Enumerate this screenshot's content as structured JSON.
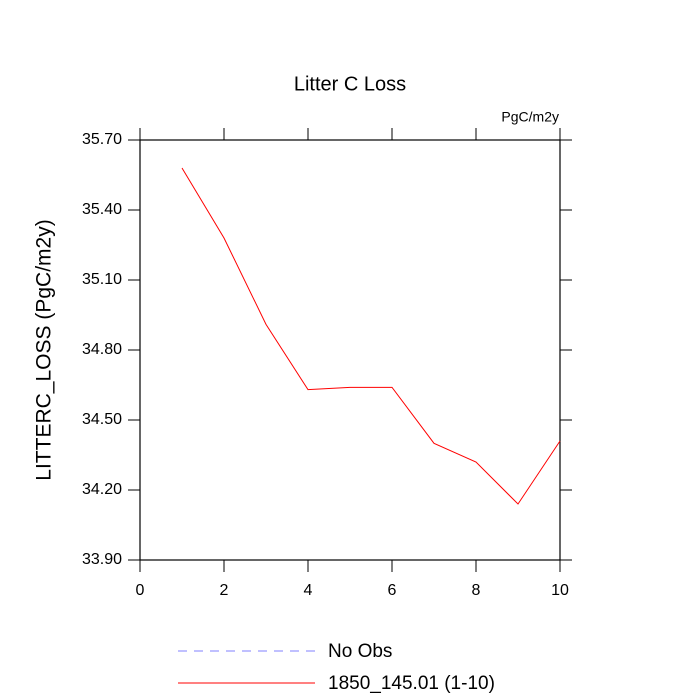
{
  "chart_data": {
    "type": "line",
    "title": "Litter C Loss",
    "units_label": "PgC/m2y",
    "y_label": "LITTERC_LOSS  (PgC/m2y)",
    "x": [
      1,
      2,
      3,
      4,
      5,
      6,
      7,
      8,
      9,
      10
    ],
    "series": [
      {
        "name": "No Obs",
        "color": "#8080ff",
        "style": "dashed",
        "values": [
          null,
          null,
          null,
          null,
          null,
          null,
          null,
          null,
          null,
          null
        ]
      },
      {
        "name": "1850_145.01 (1-10)",
        "color": "#ff0000",
        "style": "solid",
        "values": [
          35.58,
          35.28,
          34.91,
          34.63,
          34.64,
          34.64,
          34.4,
          34.32,
          34.14,
          34.41
        ]
      }
    ],
    "xlim": [
      0,
      10
    ],
    "xticks": [
      0,
      2,
      4,
      6,
      8,
      10
    ],
    "ylim": [
      33.9,
      35.7
    ],
    "yticks": [
      {
        "value": 33.9,
        "label": "33.90"
      },
      {
        "value": 34.2,
        "label": "34.20"
      },
      {
        "value": 34.5,
        "label": "34.50"
      },
      {
        "value": 34.8,
        "label": "34.80"
      },
      {
        "value": 35.1,
        "label": "35.10"
      },
      {
        "value": 35.4,
        "label": "35.40"
      },
      {
        "value": 35.7,
        "label": "35.70"
      }
    ]
  }
}
